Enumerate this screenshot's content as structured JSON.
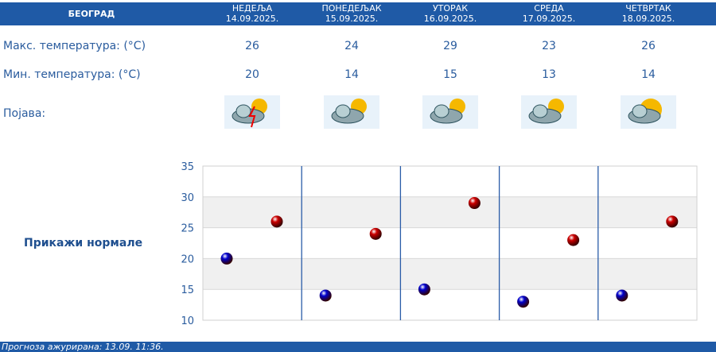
{
  "header": {
    "city": "БЕОГРАД",
    "days": [
      {
        "name": "НЕДЕЉА",
        "date": "14.09.2025.",
        "max": "26",
        "min": "20",
        "icon": "thunderstorm-partly-cloudy-icon"
      },
      {
        "name": "ПОНЕДЕЉАК",
        "date": "15.09.2025.",
        "max": "24",
        "min": "14",
        "icon": "partly-cloudy-icon"
      },
      {
        "name": "УТОРАК",
        "date": "16.09.2025.",
        "max": "29",
        "min": "15",
        "icon": "partly-cloudy-icon"
      },
      {
        "name": "СРЕДА",
        "date": "17.09.2025.",
        "max": "23",
        "min": "13",
        "icon": "partly-cloudy-icon"
      },
      {
        "name": "ЧЕТВРТАК",
        "date": "18.09.2025.",
        "max": "26",
        "min": "14",
        "icon": "mostly-sunny-icon"
      }
    ]
  },
  "labels": {
    "max": "Макс. температура: (°C)",
    "min": "Мин. температура: (°C)",
    "phenomenon": "Појава:"
  },
  "normals_link": "Прикажи нормале",
  "footer": "Прогноза ажурирана:  13.09. 11:36.",
  "chart_data": {
    "type": "scatter",
    "categories": [
      "14.09.2025.",
      "15.09.2025.",
      "16.09.2025.",
      "17.09.2025.",
      "18.09.2025."
    ],
    "series": [
      {
        "values": [
          26,
          24,
          29,
          23,
          26
        ],
        "color": "#cc0000"
      },
      {
        "values": [
          20,
          14,
          15,
          13,
          14
        ],
        "color": "#0000cc"
      }
    ],
    "ylim": [
      10,
      35
    ],
    "yticks": [
      10,
      15,
      20,
      25,
      30,
      35
    ],
    "grid": true
  }
}
